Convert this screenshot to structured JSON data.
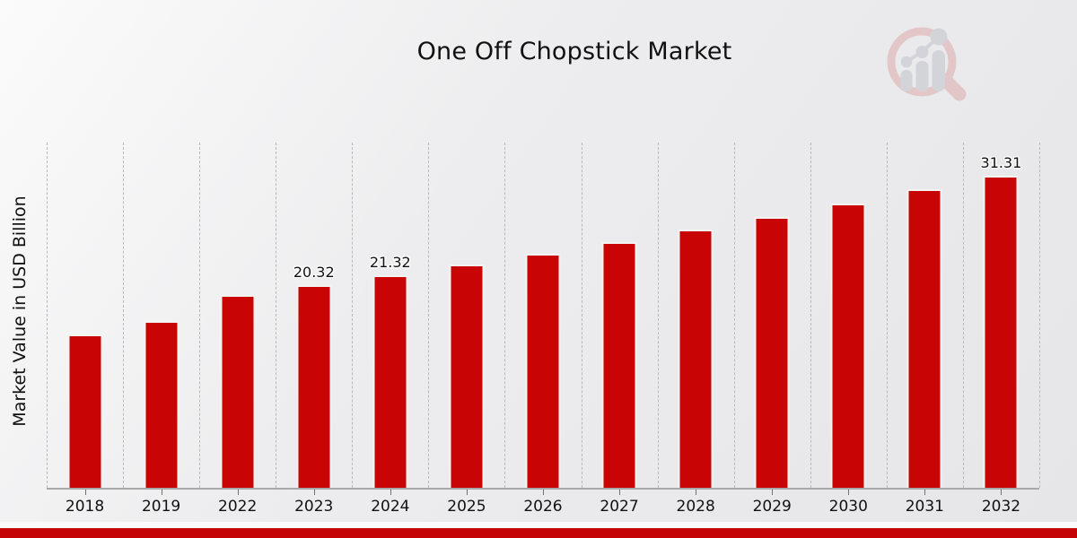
{
  "title": "One Off Chopstick Market",
  "ylabel": "Market Value in USD Billion",
  "colors": {
    "bar": "#c80404",
    "bottom_strip": "#c40404",
    "logo_ring": "#dda6a6",
    "logo_gray": "#bcbfc7"
  },
  "icons": {
    "watermark": "magnifier-bar-chart-logo-icon"
  },
  "chart_data": {
    "type": "bar",
    "title": "One Off Chopstick Market",
    "xlabel": "",
    "ylabel": "Market Value in USD Billion",
    "categories": [
      "2018",
      "2019",
      "2022",
      "2023",
      "2024",
      "2025",
      "2026",
      "2027",
      "2028",
      "2029",
      "2030",
      "2031",
      "2032"
    ],
    "values": [
      15.42,
      16.77,
      19.32,
      20.32,
      21.32,
      22.38,
      23.52,
      24.66,
      25.92,
      27.21,
      28.56,
      30.0,
      31.31
    ],
    "bar_labels": [
      "",
      "",
      "",
      "20.32",
      "21.32",
      "",
      "",
      "",
      "",
      "",
      "",
      "",
      "31.31"
    ],
    "ylim": [
      0,
      34.65
    ],
    "grid": "vertical-dashed",
    "legend": "none",
    "bar_color": "#c80404"
  }
}
